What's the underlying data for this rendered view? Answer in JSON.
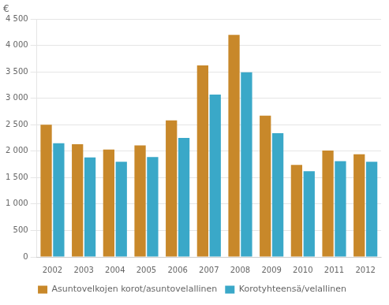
{
  "chart_data": {
    "type": "bar",
    "ylabel": "€",
    "categories": [
      "2002",
      "2003",
      "2004",
      "2005",
      "2006",
      "2007",
      "2008",
      "2009",
      "2010",
      "2011",
      "2012"
    ],
    "series": [
      {
        "name": "Asuntovelkojen korot/asuntovelallinen",
        "color": "#C8882A",
        "values": [
          2500,
          2130,
          2030,
          2110,
          2580,
          3620,
          4200,
          2670,
          1740,
          2010,
          1940
        ]
      },
      {
        "name": "Korotyhteensä/velallinen",
        "color": "#3AA8C8",
        "values": [
          2150,
          1880,
          1800,
          1890,
          2250,
          3070,
          3490,
          2340,
          1620,
          1810,
          1800
        ]
      }
    ],
    "ylim": [
      0,
      4500
    ],
    "yticks": [
      0,
      500,
      {
        "value": 1000,
        "label": "1 000"
      },
      {
        "value": 1500,
        "label": "1 500"
      },
      {
        "value": 2000,
        "label": "2 000"
      },
      {
        "value": 2500,
        "label": "2 500"
      },
      {
        "value": 3000,
        "label": "3 000"
      },
      {
        "value": 3500,
        "label": "3 500"
      },
      {
        "value": 4000,
        "label": "4 000"
      },
      {
        "value": 4500,
        "label": "4 500"
      }
    ],
    "grid": true,
    "legend": "bottom"
  }
}
